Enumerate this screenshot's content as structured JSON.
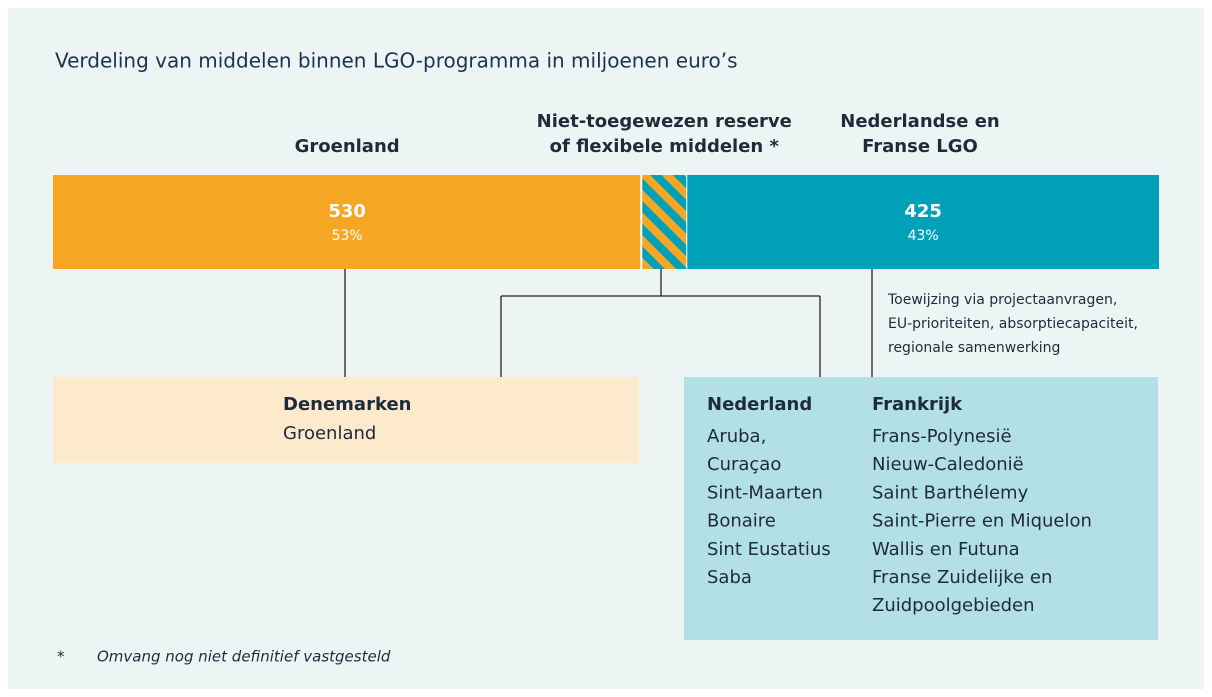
{
  "title": "Verdeling van middelen binnen LGO-programma in miljoenen euro’s",
  "bar": {
    "segments": [
      {
        "label_lines": [
          "Groenland"
        ],
        "value": 530,
        "percent": 53,
        "percent_label": "53%"
      },
      {
        "label_lines": [
          "Niet-toegewezen reserve",
          "of flexibele middelen *"
        ]
      },
      {
        "label_lines": [
          "Nederlandse en",
          "Franse LGO"
        ],
        "value": 425,
        "percent": 43,
        "percent_label": "43%"
      }
    ]
  },
  "annotation": [
    "Toewijzing via projectaanvragen,",
    "EU-prioriteiten, absorptiecapaciteit,",
    "regionale samenwerking"
  ],
  "boxes": [
    {
      "columns": [
        {
          "heading": "Denemarken",
          "lines": [
            "Groenland"
          ]
        }
      ]
    },
    {
      "columns": [
        {
          "heading": "Nederland",
          "lines": [
            "Aruba,",
            "Curaçao",
            "Sint-Maarten",
            "Bonaire",
            "Sint Eustatius",
            "Saba"
          ]
        },
        {
          "heading": "Frankrijk",
          "lines": [
            "Frans-Polynesië",
            "Nieuw-Caledonië",
            "Saint Barthélemy",
            "Saint-Pierre en Miquelon",
            "Wallis en Futuna",
            "Franse Zuidelijke en",
            "Zuidpoolgebieden"
          ]
        }
      ]
    }
  ],
  "footnote": {
    "marker": "*",
    "text": "Omvang nog niet definitief vastgesteld"
  }
}
